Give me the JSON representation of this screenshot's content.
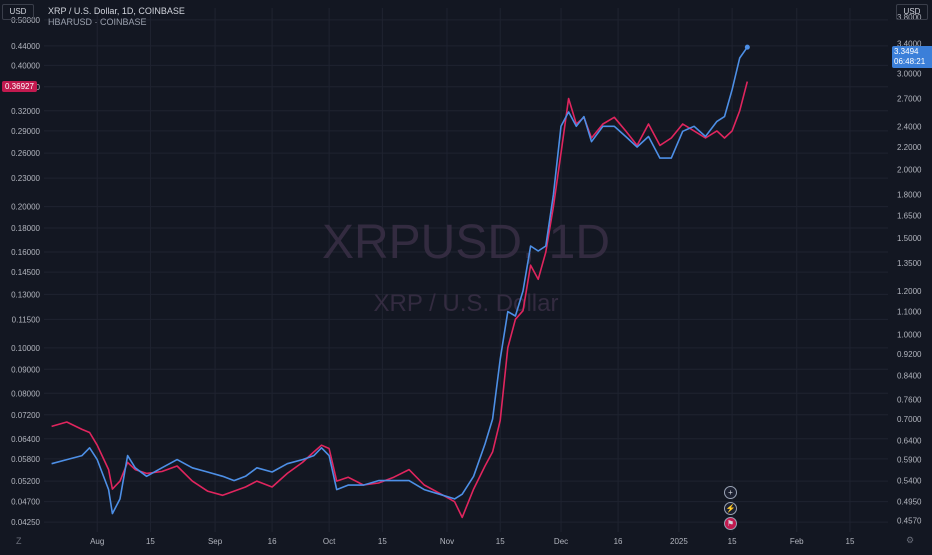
{
  "header": {
    "title": "XRP / U.S. Dollar, 1D, COINBASE",
    "secondary": "HBARUSD · COINBASE"
  },
  "left_axis_unit": "USD",
  "right_axis_unit": "USD",
  "watermark": {
    "symbol": "XRPUSD, 1D",
    "name": "XRP / U.S. Dollar"
  },
  "price_labels": {
    "hbar_last": "0.36927",
    "xrp_last": "3.3494",
    "xrp_countdown": "06:48:21"
  },
  "colors": {
    "background": "#131722",
    "grid": "#1f2330",
    "xrp_line": "#4d8fe6",
    "hbar_line": "#e0255e",
    "axis_text": "#b2b5be"
  },
  "icons": [
    "plus-circle-icon",
    "lightning-icon",
    "flag-icon",
    "gear-icon",
    "settings-icon"
  ],
  "chart_data": {
    "type": "line",
    "title": "XRP / U.S. Dollar, 1D, COINBASE",
    "x_tick_labels": [
      "Aug",
      "15",
      "Sep",
      "16",
      "Oct",
      "15",
      "Nov",
      "15",
      "Dec",
      "16",
      "2025",
      "15",
      "Feb",
      "15"
    ],
    "x_ticks_dates": [
      "2024-08-01",
      "2024-08-15",
      "2024-09-01",
      "2024-09-16",
      "2024-10-01",
      "2024-10-15",
      "2024-11-01",
      "2024-11-15",
      "2024-12-01",
      "2024-12-16",
      "2025-01-01",
      "2025-01-15",
      "2025-02-01",
      "2025-02-15"
    ],
    "x_range": [
      "2024-07-18",
      "2025-02-25"
    ],
    "left_axis": {
      "scale": "log",
      "range": [
        0.0405,
        0.53
      ],
      "ticks": [
        0.5,
        0.44,
        0.4,
        0.36,
        0.32,
        0.29,
        0.26,
        0.23,
        0.2,
        0.18,
        0.16,
        0.145,
        0.13,
        0.115,
        0.1,
        0.09,
        0.08,
        0.072,
        0.064,
        0.058,
        0.052,
        0.047,
        0.0425
      ],
      "tick_labels": [
        "0.50000",
        "0.44000",
        "0.40000",
        "0.36000",
        "0.32000",
        "0.29000",
        "0.26000",
        "0.23000",
        "0.20000",
        "0.18000",
        "0.16000",
        "0.14500",
        "0.13000",
        "0.11500",
        "0.10000",
        "0.09000",
        "0.08000",
        "0.07200",
        "0.06400",
        "0.05800",
        "0.05200",
        "0.04700",
        "0.04250"
      ]
    },
    "right_axis": {
      "scale": "log",
      "range": [
        0.435,
        3.95
      ],
      "ticks": [
        3.8,
        3.4,
        3.0,
        2.7,
        2.4,
        2.2,
        2.0,
        1.8,
        1.65,
        1.5,
        1.35,
        1.2,
        1.1,
        1.0,
        0.92,
        0.84,
        0.76,
        0.7,
        0.64,
        0.59,
        0.54,
        0.495,
        0.457
      ],
      "tick_labels": [
        "3.8000",
        "3.4000",
        "3.0000",
        "2.7000",
        "2.4000",
        "2.2000",
        "2.0000",
        "1.8000",
        "1.6500",
        "1.5000",
        "1.3500",
        "1.2000",
        "1.1000",
        "1.0000",
        "0.9200",
        "0.8400",
        "0.7600",
        "0.7000",
        "0.6400",
        "0.5900",
        "0.5400",
        "0.4950",
        "0.4570"
      ]
    },
    "grid": true,
    "series": [
      {
        "name": "XRPUSD",
        "axis": "right",
        "points": [
          [
            "2024-07-20",
            0.58
          ],
          [
            "2024-07-24",
            0.59
          ],
          [
            "2024-07-28",
            0.6
          ],
          [
            "2024-07-30",
            0.62
          ],
          [
            "2024-08-01",
            0.59
          ],
          [
            "2024-08-04",
            0.52
          ],
          [
            "2024-08-05",
            0.47
          ],
          [
            "2024-08-07",
            0.5
          ],
          [
            "2024-08-09",
            0.6
          ],
          [
            "2024-08-11",
            0.57
          ],
          [
            "2024-08-14",
            0.55
          ],
          [
            "2024-08-18",
            0.57
          ],
          [
            "2024-08-22",
            0.59
          ],
          [
            "2024-08-26",
            0.57
          ],
          [
            "2024-08-30",
            0.56
          ],
          [
            "2024-09-03",
            0.55
          ],
          [
            "2024-09-06",
            0.54
          ],
          [
            "2024-09-09",
            0.55
          ],
          [
            "2024-09-12",
            0.57
          ],
          [
            "2024-09-16",
            0.56
          ],
          [
            "2024-09-20",
            0.58
          ],
          [
            "2024-09-24",
            0.59
          ],
          [
            "2024-09-27",
            0.6
          ],
          [
            "2024-09-29",
            0.62
          ],
          [
            "2024-10-01",
            0.6
          ],
          [
            "2024-10-03",
            0.52
          ],
          [
            "2024-10-06",
            0.53
          ],
          [
            "2024-10-10",
            0.53
          ],
          [
            "2024-10-14",
            0.54
          ],
          [
            "2024-10-18",
            0.54
          ],
          [
            "2024-10-22",
            0.54
          ],
          [
            "2024-10-26",
            0.52
          ],
          [
            "2024-10-30",
            0.51
          ],
          [
            "2024-11-03",
            0.5
          ],
          [
            "2024-11-05",
            0.51
          ],
          [
            "2024-11-08",
            0.55
          ],
          [
            "2024-11-11",
            0.63
          ],
          [
            "2024-11-13",
            0.7
          ],
          [
            "2024-11-15",
            0.9
          ],
          [
            "2024-11-17",
            1.1
          ],
          [
            "2024-11-19",
            1.08
          ],
          [
            "2024-11-21",
            1.2
          ],
          [
            "2024-11-23",
            1.45
          ],
          [
            "2024-11-25",
            1.42
          ],
          [
            "2024-11-27",
            1.45
          ],
          [
            "2024-11-29",
            1.8
          ],
          [
            "2024-12-01",
            2.4
          ],
          [
            "2024-12-03",
            2.55
          ],
          [
            "2024-12-05",
            2.4
          ],
          [
            "2024-12-07",
            2.5
          ],
          [
            "2024-12-09",
            2.25
          ],
          [
            "2024-12-12",
            2.4
          ],
          [
            "2024-12-15",
            2.4
          ],
          [
            "2024-12-18",
            2.3
          ],
          [
            "2024-12-21",
            2.2
          ],
          [
            "2024-12-24",
            2.3
          ],
          [
            "2024-12-27",
            2.1
          ],
          [
            "2024-12-30",
            2.1
          ],
          [
            "2025-01-02",
            2.35
          ],
          [
            "2025-01-05",
            2.4
          ],
          [
            "2025-01-08",
            2.3
          ],
          [
            "2025-01-11",
            2.45
          ],
          [
            "2025-01-13",
            2.5
          ],
          [
            "2025-01-15",
            2.8
          ],
          [
            "2025-01-17",
            3.2
          ],
          [
            "2025-01-19",
            3.3494
          ]
        ]
      },
      {
        "name": "HBARUSD",
        "axis": "left",
        "points": [
          [
            "2024-07-20",
            0.068
          ],
          [
            "2024-07-24",
            0.0695
          ],
          [
            "2024-07-28",
            0.067
          ],
          [
            "2024-07-30",
            0.066
          ],
          [
            "2024-08-01",
            0.062
          ],
          [
            "2024-08-04",
            0.055
          ],
          [
            "2024-08-05",
            0.05
          ],
          [
            "2024-08-07",
            0.052
          ],
          [
            "2024-08-09",
            0.057
          ],
          [
            "2024-08-11",
            0.055
          ],
          [
            "2024-08-14",
            0.054
          ],
          [
            "2024-08-18",
            0.0545
          ],
          [
            "2024-08-22",
            0.056
          ],
          [
            "2024-08-26",
            0.052
          ],
          [
            "2024-08-30",
            0.0495
          ],
          [
            "2024-09-03",
            0.0485
          ],
          [
            "2024-09-06",
            0.0495
          ],
          [
            "2024-09-09",
            0.0505
          ],
          [
            "2024-09-12",
            0.052
          ],
          [
            "2024-09-16",
            0.0505
          ],
          [
            "2024-09-20",
            0.054
          ],
          [
            "2024-09-24",
            0.057
          ],
          [
            "2024-09-27",
            0.06
          ],
          [
            "2024-09-29",
            0.062
          ],
          [
            "2024-10-01",
            0.061
          ],
          [
            "2024-10-03",
            0.052
          ],
          [
            "2024-10-06",
            0.053
          ],
          [
            "2024-10-10",
            0.051
          ],
          [
            "2024-10-14",
            0.0515
          ],
          [
            "2024-10-18",
            0.053
          ],
          [
            "2024-10-22",
            0.055
          ],
          [
            "2024-10-26",
            0.051
          ],
          [
            "2024-10-30",
            0.049
          ],
          [
            "2024-11-03",
            0.047
          ],
          [
            "2024-11-05",
            0.0435
          ],
          [
            "2024-11-08",
            0.05
          ],
          [
            "2024-11-11",
            0.056
          ],
          [
            "2024-11-13",
            0.06
          ],
          [
            "2024-11-15",
            0.07
          ],
          [
            "2024-11-17",
            0.1
          ],
          [
            "2024-11-19",
            0.115
          ],
          [
            "2024-11-21",
            0.12
          ],
          [
            "2024-11-23",
            0.15
          ],
          [
            "2024-11-25",
            0.14
          ],
          [
            "2024-11-27",
            0.16
          ],
          [
            "2024-11-29",
            0.2
          ],
          [
            "2024-12-01",
            0.26
          ],
          [
            "2024-12-03",
            0.34
          ],
          [
            "2024-12-05",
            0.3
          ],
          [
            "2024-12-07",
            0.31
          ],
          [
            "2024-12-09",
            0.28
          ],
          [
            "2024-12-12",
            0.3
          ],
          [
            "2024-12-15",
            0.31
          ],
          [
            "2024-12-18",
            0.29
          ],
          [
            "2024-12-21",
            0.27
          ],
          [
            "2024-12-24",
            0.3
          ],
          [
            "2024-12-27",
            0.27
          ],
          [
            "2024-12-30",
            0.28
          ],
          [
            "2025-01-02",
            0.3
          ],
          [
            "2025-01-05",
            0.29
          ],
          [
            "2025-01-08",
            0.28
          ],
          [
            "2025-01-11",
            0.29
          ],
          [
            "2025-01-13",
            0.28
          ],
          [
            "2025-01-15",
            0.29
          ],
          [
            "2025-01-17",
            0.32
          ],
          [
            "2025-01-19",
            0.36927
          ]
        ]
      }
    ]
  },
  "footer": {
    "left_corner": "Z",
    "right_corner": "⚙"
  }
}
